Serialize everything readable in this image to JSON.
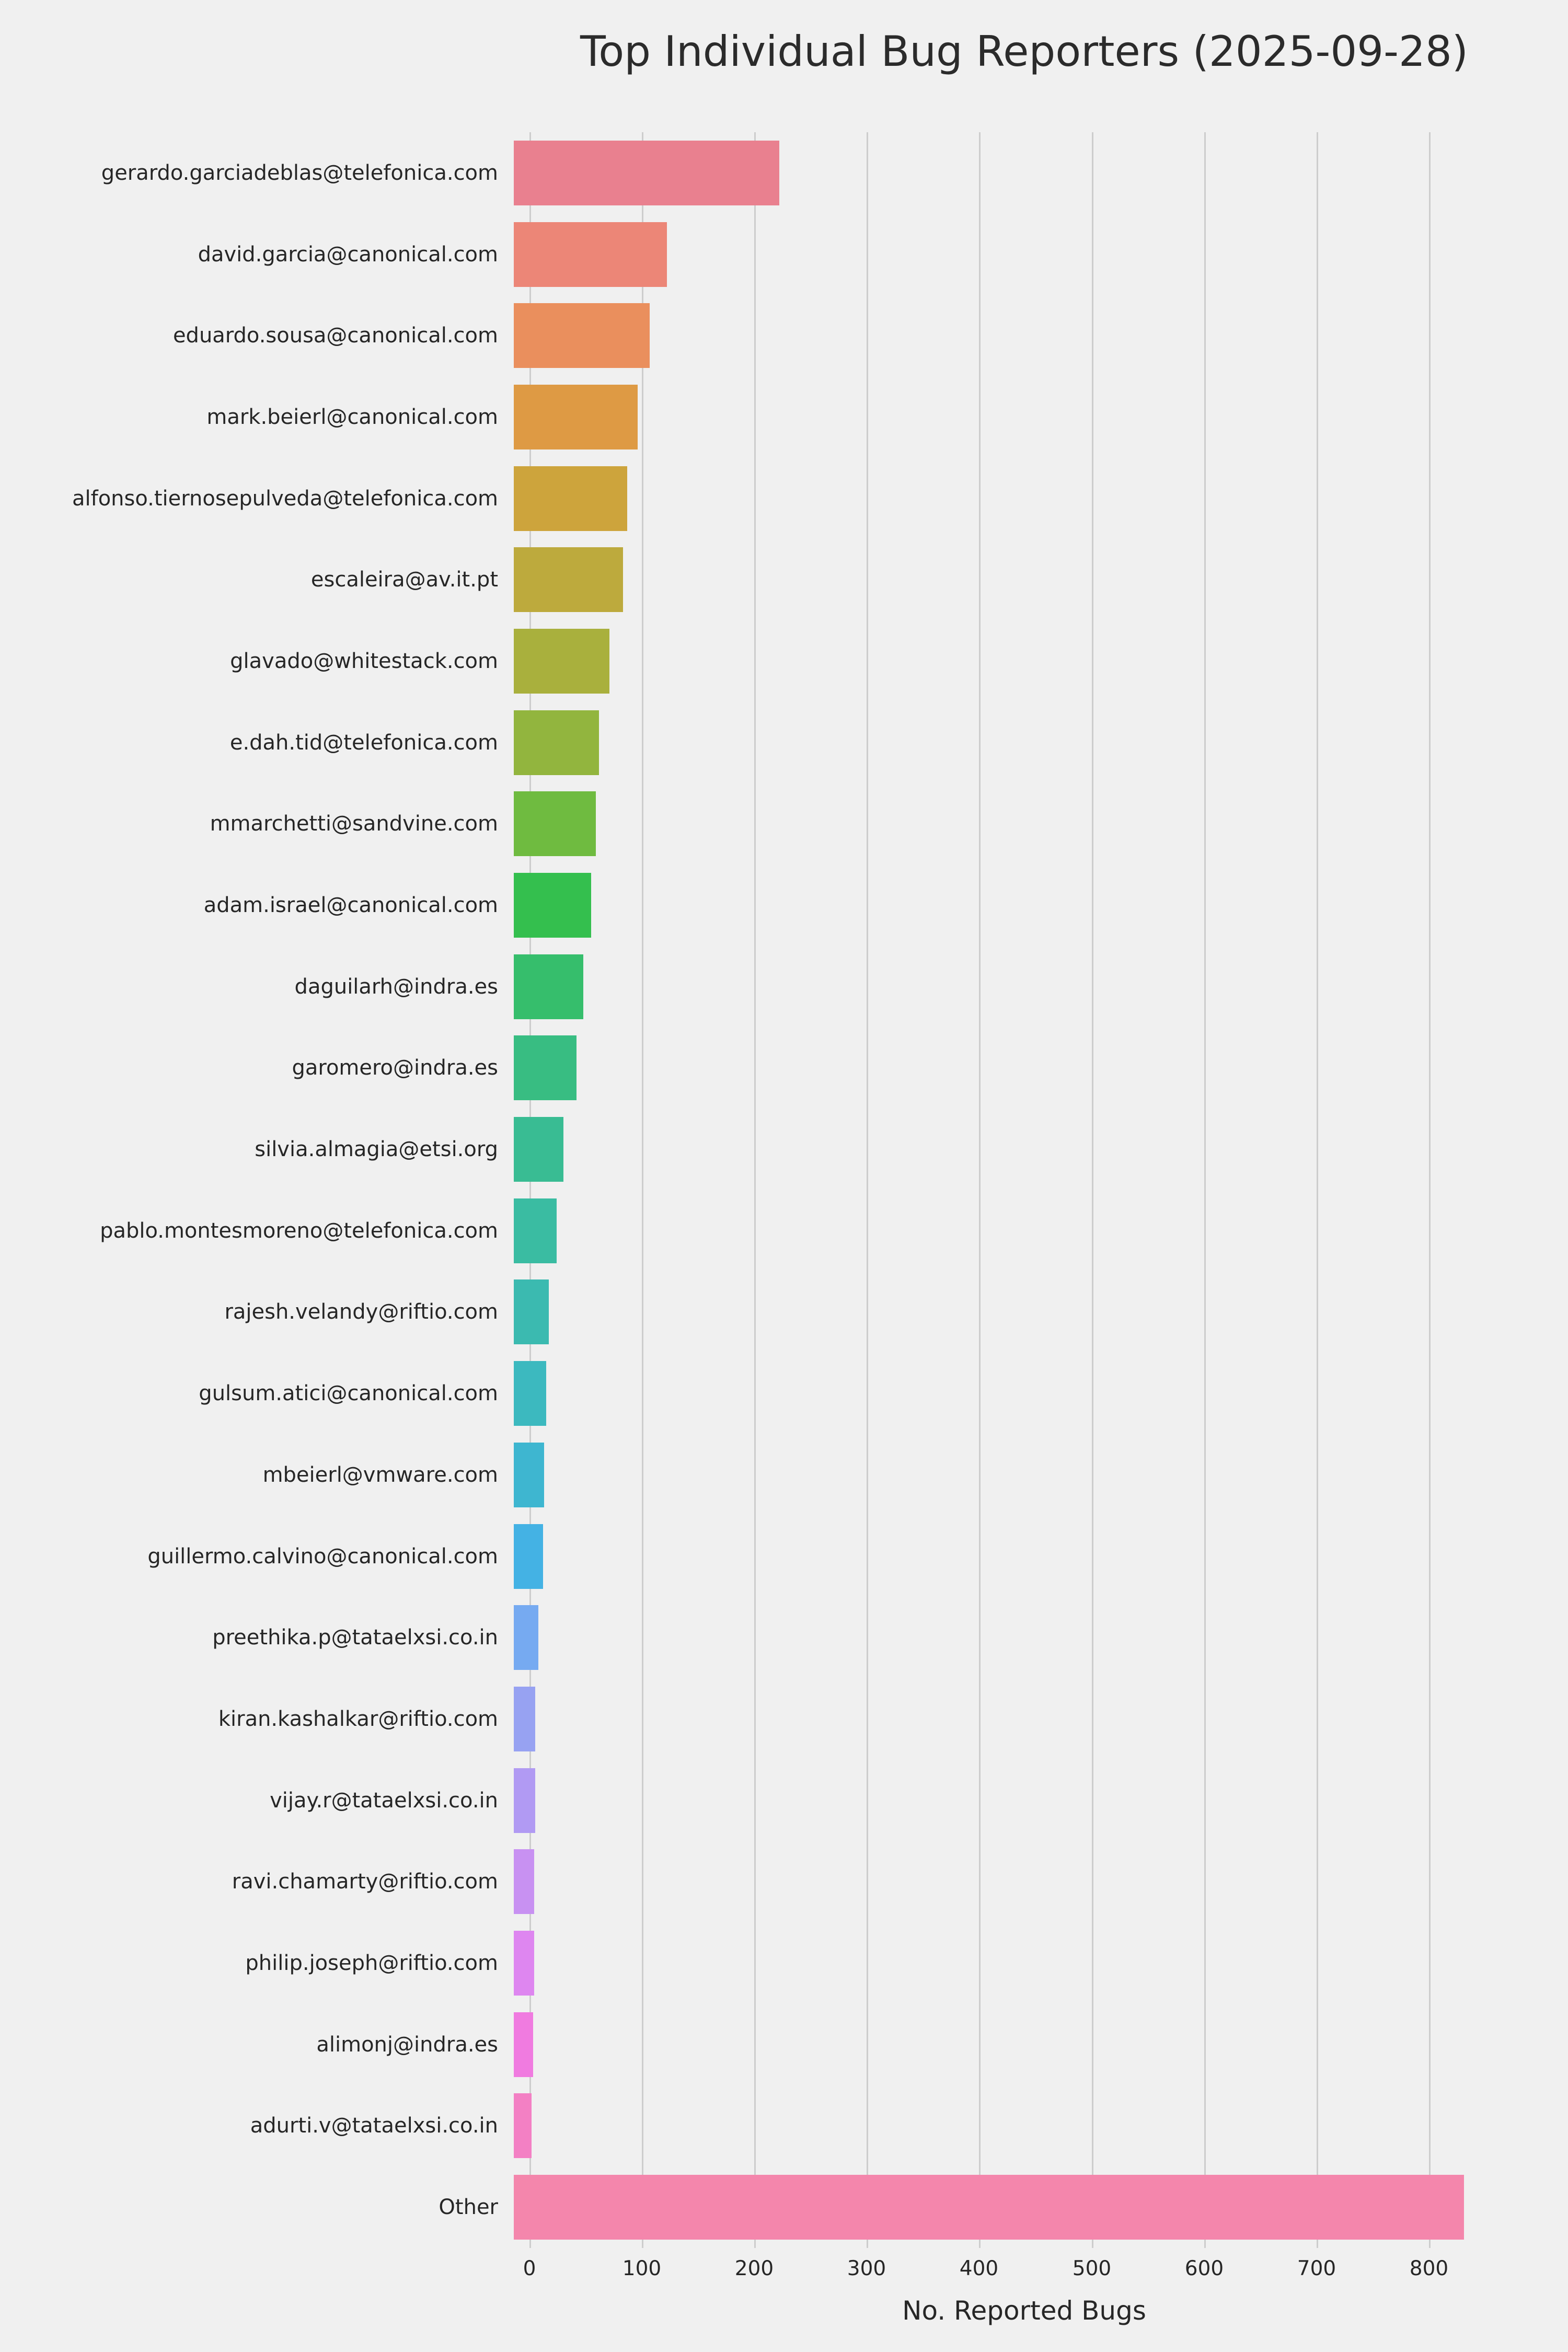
{
  "chart_data": {
    "type": "bar",
    "orientation": "horizontal",
    "title": "Top Individual Bug Reporters (2025-09-28)",
    "xlabel": "No. Reported Bugs",
    "ylabel": "",
    "categories": [
      "gerardo.garciadeblas@telefonica.com",
      "david.garcia@canonical.com",
      "eduardo.sousa@canonical.com",
      "mark.beierl@canonical.com",
      "alfonso.tiernosepulveda@telefonica.com",
      "escaleira@av.it.pt",
      "glavado@whitestack.com",
      "e.dah.tid@telefonica.com",
      "mmarchetti@sandvine.com",
      "adam.israel@canonical.com",
      "daguilarh@indra.es",
      "garomero@indra.es",
      "silvia.almagia@etsi.org",
      "pablo.montesmoreno@telefonica.com",
      "rajesh.velandy@riftio.com",
      "gulsum.atici@canonical.com",
      "mbeierl@vmware.com",
      "guillermo.calvino@canonical.com",
      "preethika.p@tataelxsi.co.in",
      "kiran.kashalkar@riftio.com",
      "vijay.r@tataelxsi.co.in",
      "ravi.chamarty@riftio.com",
      "philip.joseph@riftio.com",
      "alimonj@indra.es",
      "adurti.v@tataelxsi.co.in",
      "Other"
    ],
    "values": [
      236,
      136,
      121,
      110,
      101,
      97,
      85,
      76,
      73,
      69,
      62,
      56,
      44,
      38,
      31,
      29,
      27,
      26,
      22,
      19,
      19,
      18,
      18,
      17,
      16,
      845
    ],
    "colors": [
      "#e9808f",
      "#ec8677",
      "#ea8f5d",
      "#de9a44",
      "#cda43c",
      "#bdaa3d",
      "#a9b03d",
      "#92b53e",
      "#6fbb40",
      "#34bf4e",
      "#36be6c",
      "#38bd82",
      "#39bc93",
      "#3abca2",
      "#3bbab0",
      "#3cb9bf",
      "#3eb6d0",
      "#44b2e4",
      "#76aaf1",
      "#97a2f2",
      "#b19af3",
      "#c891f2",
      "#de86f0",
      "#f07be0",
      "#f380c4",
      "#f486ac"
    ],
    "xticks": [
      0,
      100,
      200,
      300,
      400,
      500,
      600,
      700,
      800
    ],
    "xlim": [
      0,
      880
    ],
    "grid": "vertical",
    "legend": "none",
    "background_color": "#f0f0f0",
    "gridline_color": "#cdcdcd"
  }
}
